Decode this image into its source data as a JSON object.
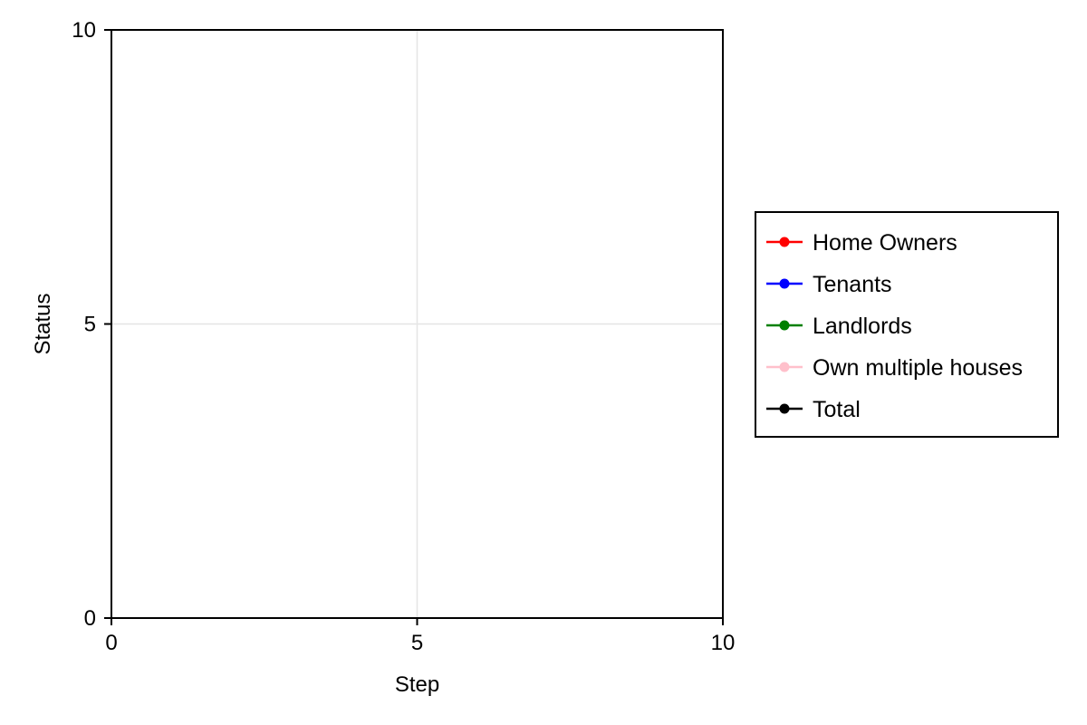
{
  "chart_data": {
    "type": "line",
    "title": "",
    "xlabel": "Step",
    "ylabel": "Status",
    "xlim": [
      0,
      10
    ],
    "ylim": [
      0,
      10
    ],
    "xticks": [
      0,
      5,
      10
    ],
    "yticks": [
      0,
      5,
      10
    ],
    "grid": true,
    "legend_position": "right",
    "series": [
      {
        "name": "Home Owners",
        "color": "#ff0000",
        "marker": "circle",
        "x": [],
        "y": []
      },
      {
        "name": "Tenants",
        "color": "#0000ff",
        "marker": "circle",
        "x": [],
        "y": []
      },
      {
        "name": "Landlords",
        "color": "#008000",
        "marker": "circle",
        "x": [],
        "y": []
      },
      {
        "name": "Own multiple houses",
        "color": "#ffc0cb",
        "marker": "circle",
        "x": [],
        "y": []
      },
      {
        "name": "Total",
        "color": "#000000",
        "marker": "circle",
        "x": [],
        "y": []
      }
    ]
  }
}
